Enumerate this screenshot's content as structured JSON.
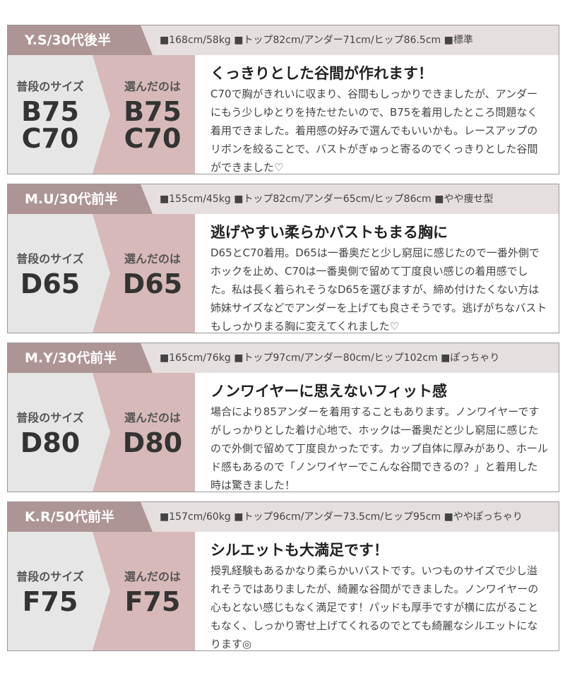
{
  "reviews": [
    {
      "name": "Y.S/30代後半",
      "stats": "■168cm/58kg ■トップ82cm/アンダー71cm/ヒップ86.5cm ■標準",
      "usual_label": "普段のサイズ",
      "usual_size": [
        "B75",
        "C70"
      ],
      "chosen_label": "選んだのは",
      "chosen_size": [
        "B75",
        "C70"
      ],
      "title": "くっきりとした谷間が作れます！",
      "body": "C70で胸がきれいに収まり、谷間もしっかりできましたが、アンダーにもう少しゆとりを持たせたいので、B75を着用したところ問題なく着用できました。着用感の好みで選んでもいいかも。レースアップのリボンを絞ることで、バストがぎゅっと寄るのでくっきりとした谷間ができました♡"
    },
    {
      "name": "M.U/30代前半",
      "stats": "■155cm/45kg ■トップ82cm/アンダー65cm/ヒップ86cm ■やや痩せ型",
      "usual_label": "普段のサイズ",
      "usual_size": [
        "D65"
      ],
      "chosen_label": "選んだのは",
      "chosen_size": [
        "D65"
      ],
      "title": "逃げやすい柔らかバストもまる胸に",
      "body": "D65とC70着用。D65は一番奥だと少し窮屈に感じたので一番外側でホックを止め、C70は一番奥側で留めて丁度良い感じの着用感でした。私は長く着られそうなD65を選びますが、締め付けたくない方は姉妹サイズなどでアンダーを上げても良さそうです。逃げがちなバストもしっかりまる胸に変えてくれました♡"
    },
    {
      "name": "M.Y/30代前半",
      "stats": "■165cm/76kg ■トップ97cm/アンダー80cm/ヒップ102cm ■ぽっちゃり",
      "usual_label": "普段のサイズ",
      "usual_size": [
        "D80"
      ],
      "chosen_label": "選んだのは",
      "chosen_size": [
        "D80"
      ],
      "title": "ノンワイヤーに思えないフィット感",
      "body": "場合により85アンダーを着用することもあります。ノンワイヤーですがしっかりとした着け心地で、ホックは一番奥だと少し窮屈に感じたので外側で留めて丁度良かったです。カップ自体に厚みがあり、ホールド感もあるので「ノンワイヤーでこんな谷間できるの？」と着用した時は驚きました！"
    },
    {
      "name": "K.R/50代前半",
      "stats": "■157cm/60kg ■トップ96cm/アンダー73.5cm/ヒップ95cm ■ややぽっちゃり",
      "usual_label": "普段のサイズ",
      "usual_size": [
        "F75"
      ],
      "chosen_label": "選んだのは",
      "chosen_size": [
        "F75"
      ],
      "title": "シルエットも大満足です！",
      "body": "授乳経験もあるかなり柔らかいバストです。いつものサイズで少し溢れそうではありましたが、綺麗な谷間ができました。ノンワイヤーの心もとない感じもなく満足です！パッドも厚手ですが横に広がることもなく、しっかり寄せ上げてくれるのでとても綺麗なシルエットになります◎"
    }
  ]
}
